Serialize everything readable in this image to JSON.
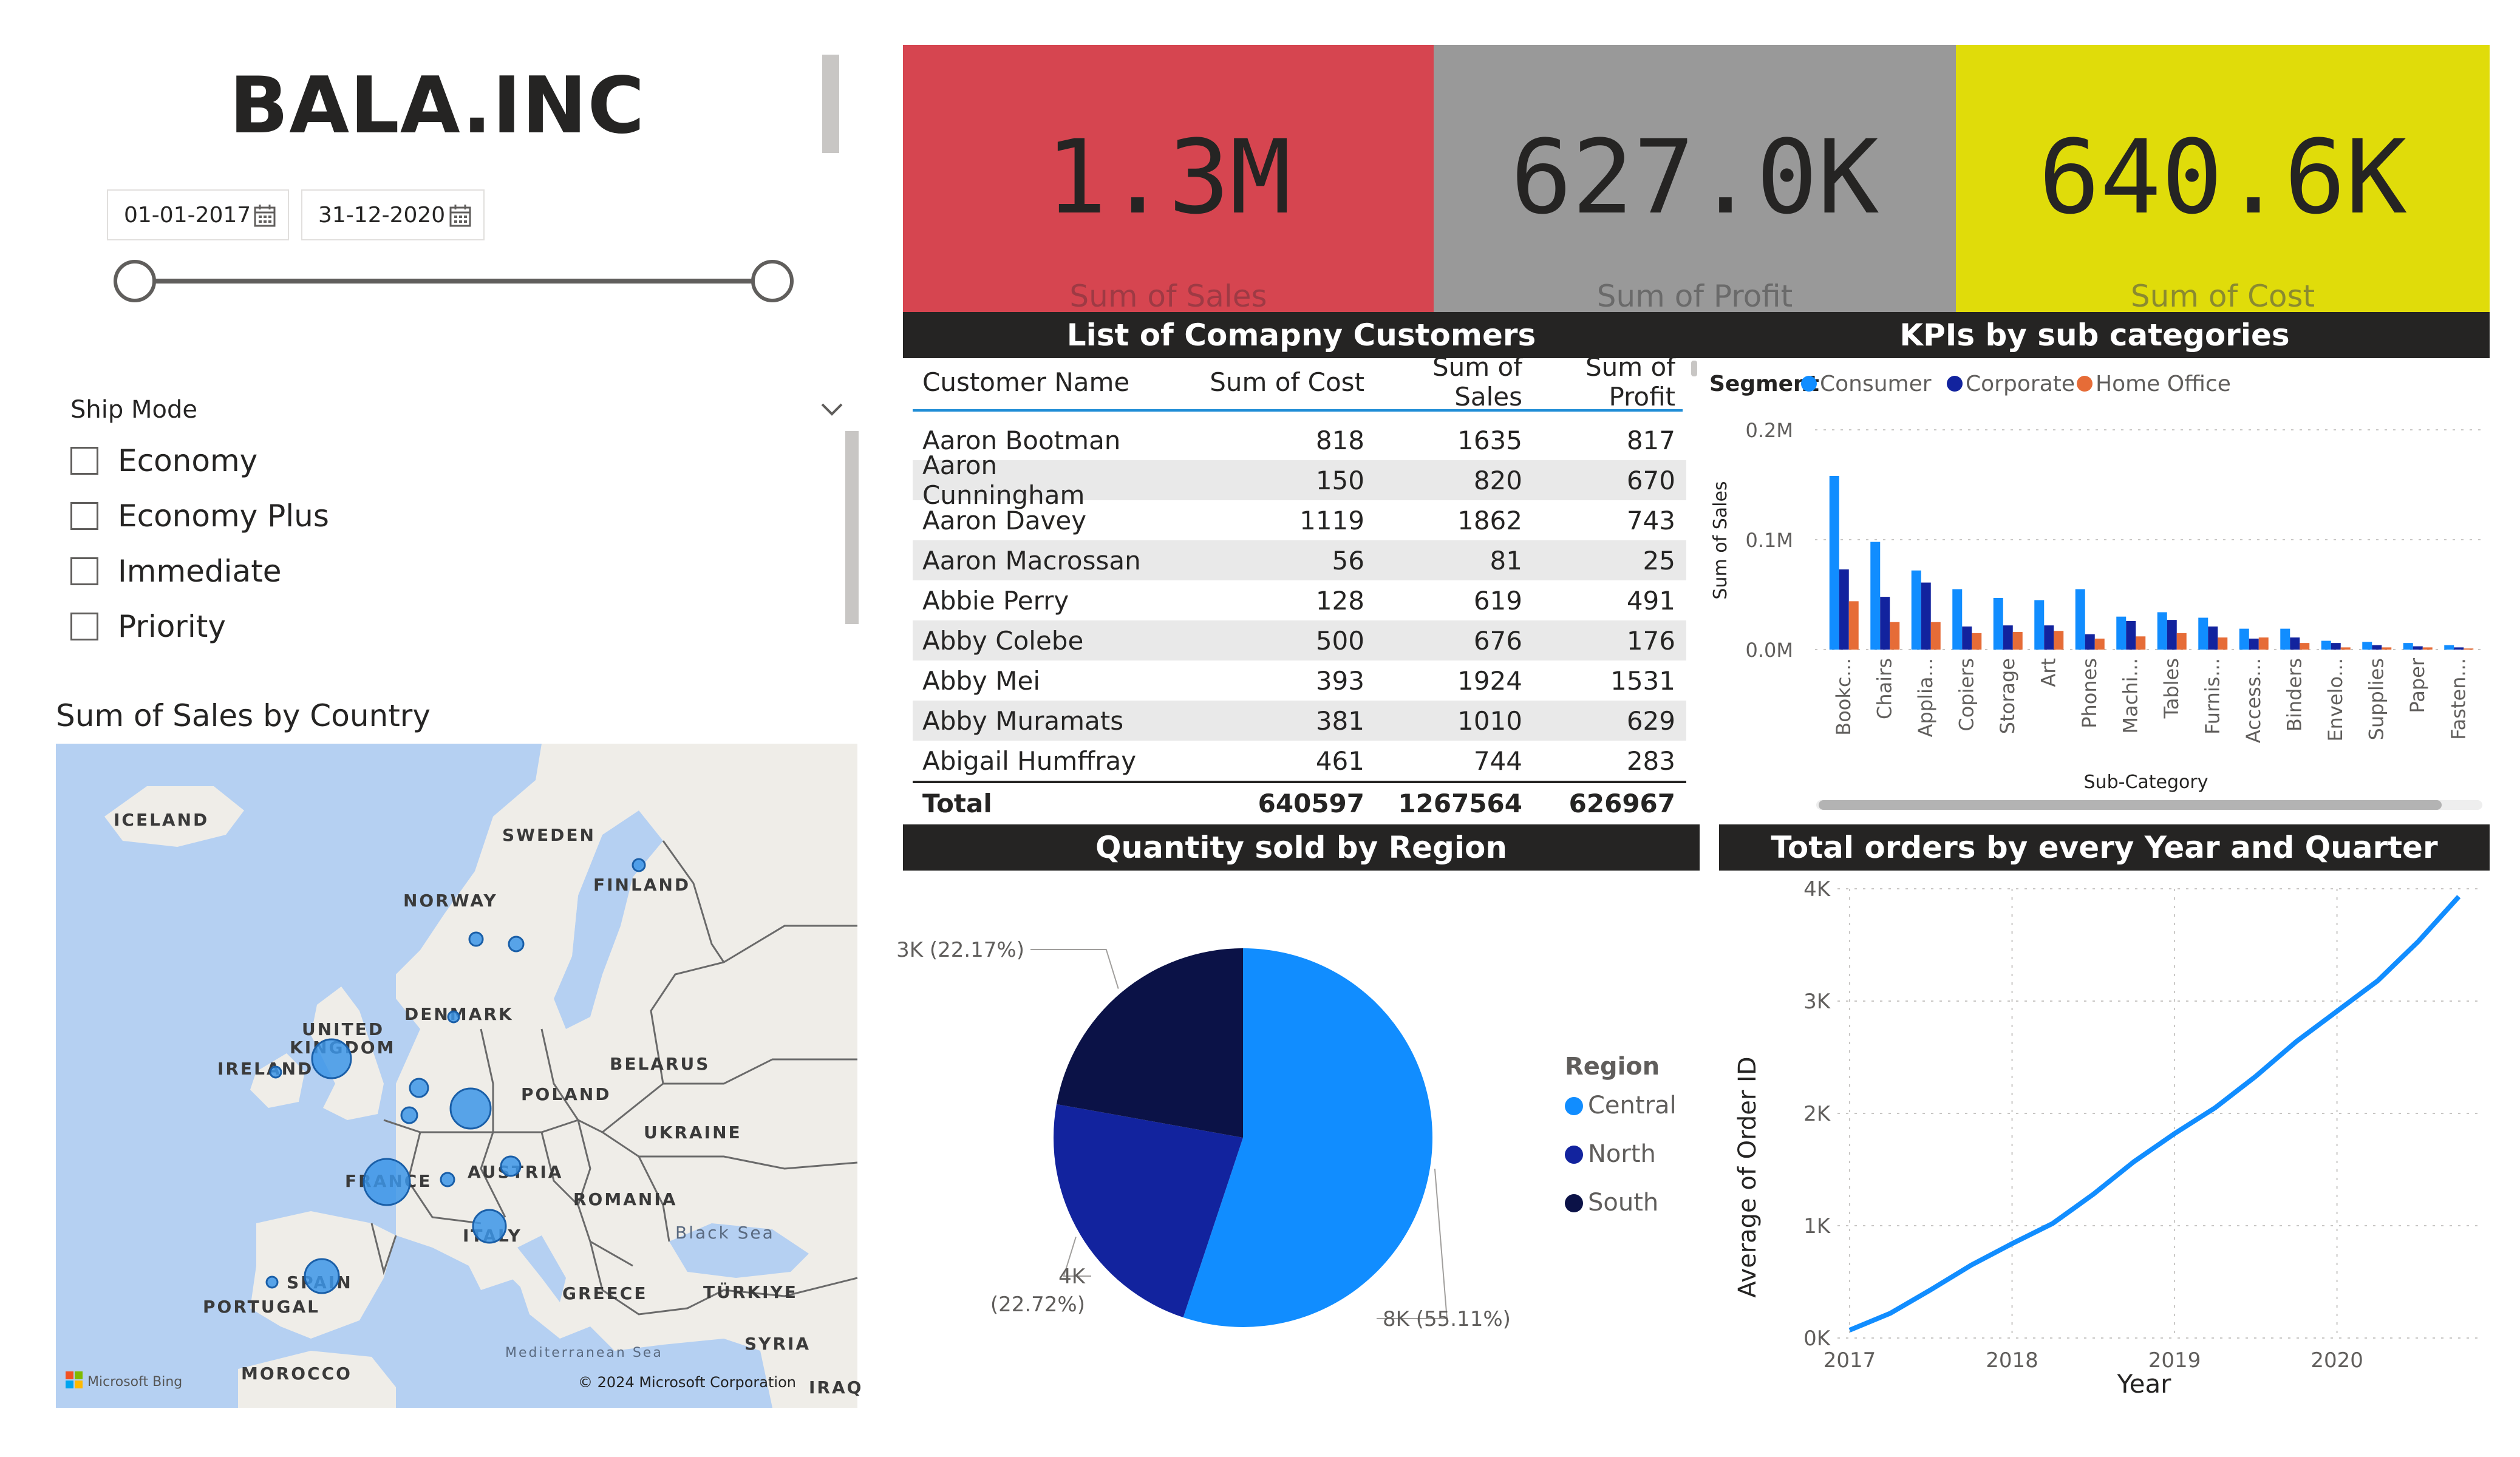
{
  "title": "BALA.INC",
  "date_range": {
    "start": "01-01-2017",
    "end": "31-12-2020"
  },
  "ship_mode": {
    "title": "Ship Mode",
    "options": [
      "Economy",
      "Economy Plus",
      "Immediate",
      "Priority"
    ]
  },
  "map": {
    "title": "Sum of Sales by Country",
    "labels": [
      "ICELAND",
      "SWEDEN",
      "FINLAND",
      "NORWAY",
      "DENMARK",
      "UNITED",
      "KINGDOM",
      "IRELAND",
      "BELARUS",
      "POLAND",
      "UKRAINE",
      "FRANCE",
      "AUSTRIA",
      "ROMANIA",
      "ITALY",
      "Black Sea",
      "SPAIN",
      "PORTUGAL",
      "GREECE",
      "TÜRKIYE",
      "SYRIA",
      "Mediterranean Sea",
      "MOROCCO",
      "IRAQ"
    ],
    "attribution_logo": "Microsoft Bing",
    "copyright": "© 2024 Microsoft Corporation",
    "bubble_color": "#3c95e8"
  },
  "kpis": [
    {
      "value": "1.3M",
      "label": "Sum of Sales",
      "bg": "#d64550",
      "label_color": "#9e3a44"
    },
    {
      "value": "627.0K",
      "label": "Sum of Profit",
      "bg": "#999999",
      "label_color": "#6a6a6a"
    },
    {
      "value": "640.6K",
      "label": "Sum of Cost",
      "bg": "#e0dc0a",
      "label_color": "#8a8a30"
    }
  ],
  "customers": {
    "title": "List of Comapny Customers",
    "columns": [
      "Customer Name",
      "Sum of Cost",
      "Sum of Sales",
      "Sum of Profit"
    ],
    "rows": [
      [
        "Aaron Bootman",
        "818",
        "1635",
        "817"
      ],
      [
        "Aaron Cunningham",
        "150",
        "820",
        "670"
      ],
      [
        "Aaron Davey",
        "1119",
        "1862",
        "743"
      ],
      [
        "Aaron Macrossan",
        "56",
        "81",
        "25"
      ],
      [
        "Abbie Perry",
        "128",
        "619",
        "491"
      ],
      [
        "Abby Colebe",
        "500",
        "676",
        "176"
      ],
      [
        "Abby Mei",
        "393",
        "1924",
        "1531"
      ],
      [
        "Abby Muramats",
        "381",
        "1010",
        "629"
      ],
      [
        "Abigail Humffray",
        "461",
        "744",
        "283"
      ]
    ],
    "total": [
      "Total",
      "640597",
      "1267564",
      "626967"
    ]
  },
  "kpi_chart": {
    "title": "KPIs by sub categories",
    "legend_title": "Segment",
    "chart_data": {
      "type": "bar",
      "categories": [
        "Bookc...",
        "Chairs",
        "Applia...",
        "Copiers",
        "Storage",
        "Art",
        "Phones",
        "Machi...",
        "Tables",
        "Furnis...",
        "Access...",
        "Binders",
        "Envelo...",
        "Supplies",
        "Paper",
        "Fasten..."
      ],
      "series": [
        {
          "name": "Consumer",
          "color": "#118dff",
          "values": [
            0.158,
            0.098,
            0.072,
            0.055,
            0.047,
            0.045,
            0.055,
            0.03,
            0.034,
            0.029,
            0.019,
            0.019,
            0.008,
            0.007,
            0.006,
            0.004
          ]
        },
        {
          "name": "Corporate",
          "color": "#12239e",
          "values": [
            0.073,
            0.048,
            0.061,
            0.021,
            0.022,
            0.022,
            0.014,
            0.026,
            0.027,
            0.021,
            0.01,
            0.011,
            0.006,
            0.004,
            0.003,
            0.002
          ]
        },
        {
          "name": "Home Office",
          "color": "#e66c37",
          "values": [
            0.044,
            0.025,
            0.025,
            0.015,
            0.016,
            0.017,
            0.01,
            0.012,
            0.015,
            0.011,
            0.011,
            0.006,
            0.002,
            0.002,
            0.002,
            0.001
          ]
        }
      ],
      "xlabel": "Sub-Category",
      "ylabel": "Sum of Sales",
      "yticks": [
        "0.0M",
        "0.1M",
        "0.2M"
      ],
      "ylim": [
        0,
        0.2
      ],
      "legend": "top-left"
    }
  },
  "region_chart": {
    "title": "Quantity sold by Region",
    "legend_title": "Region",
    "chart_data": {
      "type": "pie",
      "slices": [
        {
          "name": "Central",
          "value": 55.11,
          "label": "8K (55.11%)",
          "color": "#118dff"
        },
        {
          "name": "North",
          "value": 22.72,
          "label": "4K\n(22.72%)",
          "color": "#12239e"
        },
        {
          "name": "South",
          "value": 22.17,
          "label": "3K (22.17%)",
          "color": "#0b1247"
        }
      ],
      "legend": "right"
    }
  },
  "orders_chart": {
    "title": "Total orders by every Year and Quarter",
    "chart_data": {
      "type": "line",
      "x": [
        2017.0,
        2017.25,
        2017.5,
        2017.75,
        2018.0,
        2018.25,
        2018.5,
        2018.75,
        2019.0,
        2019.25,
        2019.5,
        2019.75,
        2020.0,
        2020.25,
        2020.5,
        2020.75
      ],
      "y": [
        70,
        220,
        430,
        650,
        840,
        1020,
        1280,
        1570,
        1820,
        2050,
        2330,
        2640,
        2910,
        3180,
        3530,
        3930
      ],
      "xlabel": "Year",
      "ylabel": "Average of Order ID",
      "xticks": [
        "2017",
        "2018",
        "2019",
        "2020"
      ],
      "yticks": [
        "0K",
        "1K",
        "2K",
        "3K",
        "4K"
      ],
      "ylim": [
        0,
        4000
      ],
      "color": "#118dff",
      "grid": true
    }
  }
}
